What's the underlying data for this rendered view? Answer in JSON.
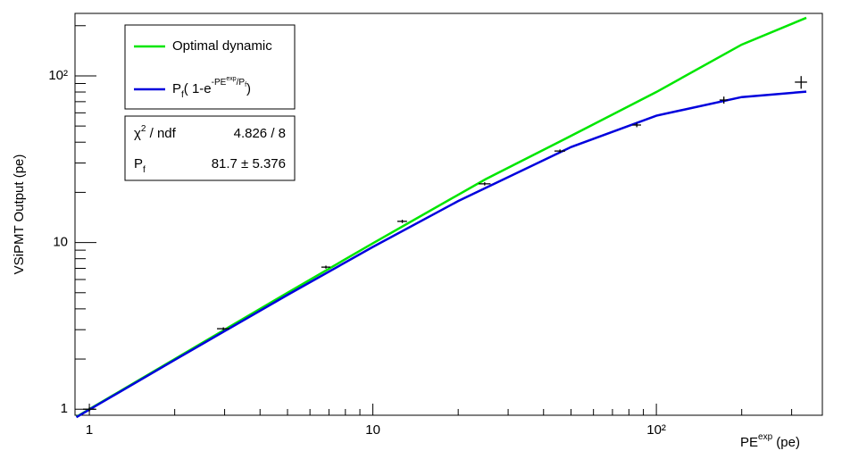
{
  "chart_data": {
    "type": "line",
    "log_x": true,
    "log_y": true,
    "xlabel": [
      "PE",
      "exp",
      " (pe)"
    ],
    "ylabel": "VSiPMT Output (pe)",
    "xlim": [
      0.89,
      385
    ],
    "ylim": [
      0.92,
      237
    ],
    "xticks": [
      1,
      10,
      {
        "value": 100,
        "label": "10²"
      }
    ],
    "yticks": [
      1,
      10,
      {
        "value": 100,
        "label": "10²"
      }
    ],
    "xminorticks": [
      2,
      3,
      4,
      5,
      6,
      7,
      8,
      9,
      20,
      30,
      40,
      50,
      60,
      70,
      80,
      90,
      200,
      300
    ],
    "yminorticks": [
      2,
      3,
      4,
      5,
      6,
      7,
      8,
      9,
      20,
      30,
      40,
      50,
      60,
      70,
      80,
      90,
      200
    ],
    "series": [
      {
        "name": "Optimal dynamic",
        "color": "#00e600",
        "x": [
          0.9,
          1,
          2,
          5,
          10,
          25,
          46,
          100,
          200,
          338
        ],
        "values": [
          0.9,
          1,
          2,
          5,
          9.9,
          24,
          40.6,
          80,
          154,
          223
        ]
      },
      {
        "name": [
          "P",
          "f",
          "( 1-e",
          "-PE",
          "exp",
          "/P",
          "f",
          ")"
        ],
        "color": "#0000dd",
        "x": [
          0.9,
          1,
          2,
          5,
          10,
          20,
          50,
          100,
          200,
          338
        ],
        "values": [
          0.895,
          0.994,
          1.976,
          4.85,
          9.41,
          17.74,
          37.4,
          57.7,
          74.6,
          80.4
        ]
      },
      {
        "color": "#000000",
        "x": [
          1.0,
          2.97,
          6.83,
          12.7,
          24.8,
          45.7,
          85.3,
          173,
          324
        ],
        "xerr": [
          0.05,
          0.15,
          0.25,
          0.5,
          1.2,
          2,
          3,
          6,
          16
        ],
        "values": [
          1.0,
          3.04,
          7.12,
          13.4,
          22.5,
          35.4,
          50.7,
          71.6,
          91.7
        ],
        "yerr": [
          0.03,
          0.06,
          0.15,
          0.3,
          0.5,
          0.8,
          1.5,
          3.5,
          8
        ]
      }
    ],
    "stats": [
      {
        "label": [
          "χ",
          "2",
          " / ndf"
        ],
        "value": "4.826 / 8"
      },
      {
        "label": [
          "P",
          "f"
        ],
        "value": "81.7 ± 5.376"
      }
    ]
  }
}
